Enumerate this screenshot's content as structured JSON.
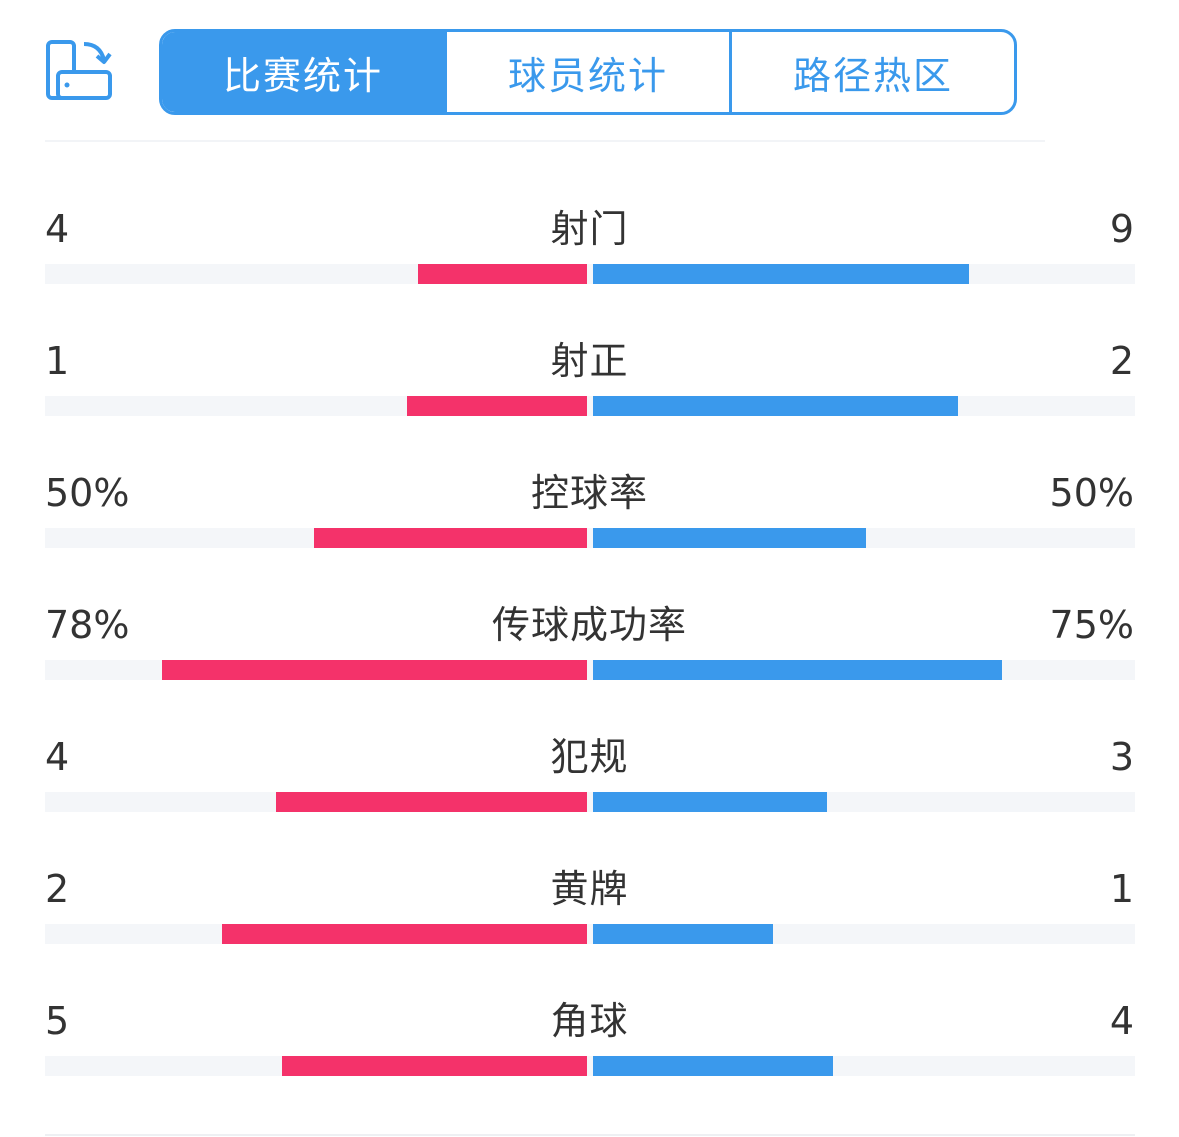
{
  "tabs": [
    {
      "label": "比赛统计",
      "active": true
    },
    {
      "label": "球员统计",
      "active": false
    },
    {
      "label": "路径热区",
      "active": false
    }
  ],
  "colors": {
    "home": "#f4326a",
    "away": "#3a99ec",
    "accent": "#3a99ec"
  },
  "icons": {
    "rotate": "screen-rotate-icon"
  },
  "stats": [
    {
      "label": "射门",
      "home": "4",
      "away": "9",
      "home_fill": 0.31,
      "away_fill": 0.69
    },
    {
      "label": "射正",
      "home": "1",
      "away": "2",
      "home_fill": 0.33,
      "away_fill": 0.67
    },
    {
      "label": "控球率",
      "home": "50%",
      "away": "50%",
      "home_fill": 0.5,
      "away_fill": 0.5
    },
    {
      "label": "传球成功率",
      "home": "78%",
      "away": "75%",
      "home_fill": 0.78,
      "away_fill": 0.75
    },
    {
      "label": "犯规",
      "home": "4",
      "away": "3",
      "home_fill": 0.57,
      "away_fill": 0.43
    },
    {
      "label": "黄牌",
      "home": "2",
      "away": "1",
      "home_fill": 0.67,
      "away_fill": 0.33
    },
    {
      "label": "角球",
      "home": "5",
      "away": "4",
      "home_fill": 0.56,
      "away_fill": 0.44
    }
  ]
}
